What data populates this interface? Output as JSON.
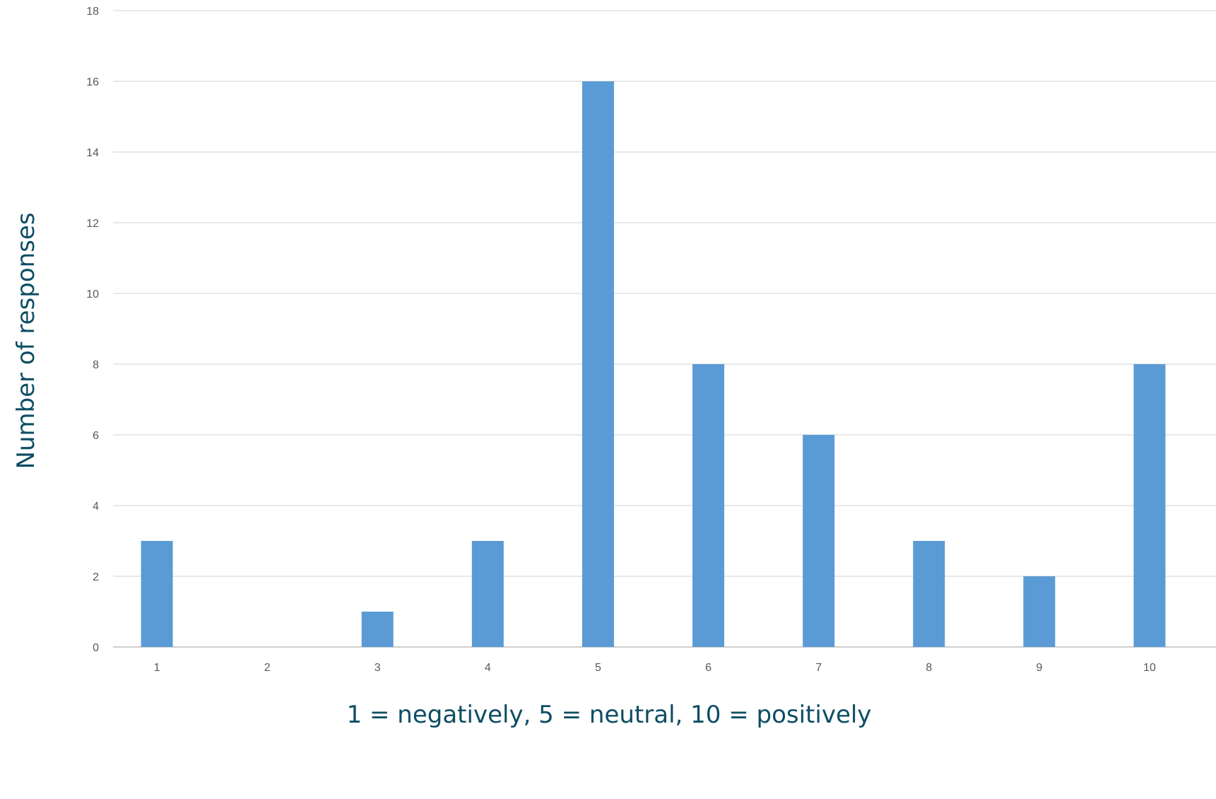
{
  "chart_data": {
    "type": "bar",
    "title": "",
    "xlabel": "1 = negatively, 5 = neutral, 10 = positively",
    "ylabel": "Number of responses",
    "categories": [
      "1",
      "2",
      "3",
      "4",
      "5",
      "6",
      "7",
      "8",
      "9",
      "10"
    ],
    "values": [
      3,
      0,
      1,
      3,
      16,
      8,
      6,
      3,
      2,
      8
    ],
    "ylim": [
      0,
      18
    ],
    "yticks": [
      0,
      2,
      4,
      6,
      8,
      10,
      12,
      14,
      16,
      18
    ],
    "grid": true,
    "legend": "none",
    "colors": {
      "bar": "#5b9bd5",
      "axis_title": "#0e4d64",
      "grid": "#d9d9d9"
    }
  }
}
